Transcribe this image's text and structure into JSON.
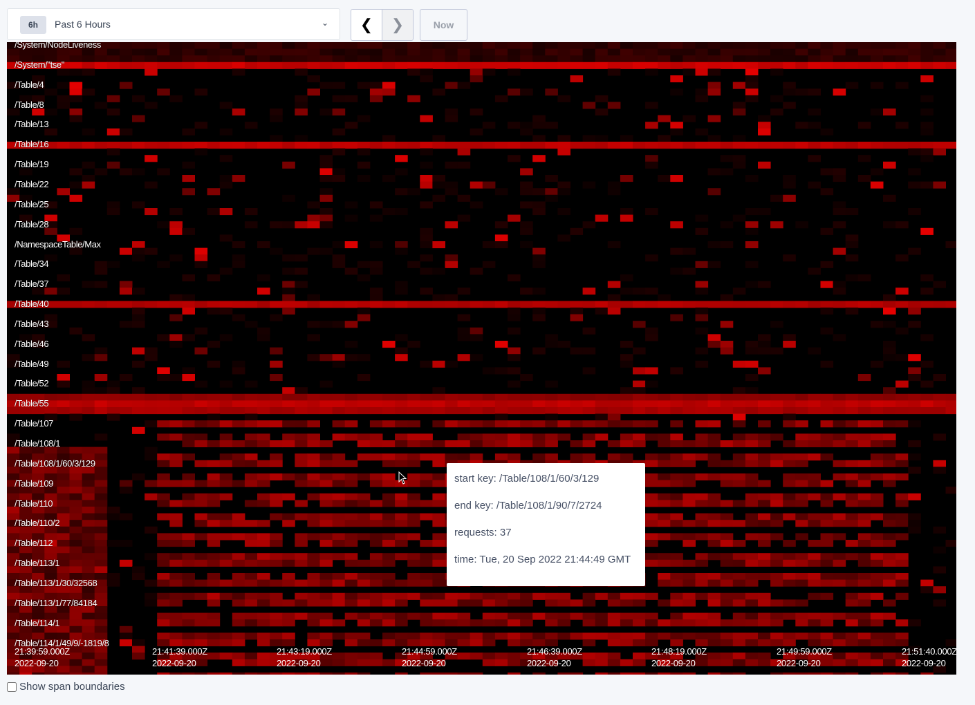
{
  "time_range": {
    "badge": "6h",
    "label": "Past 6 Hours"
  },
  "nav": {
    "prev_icon": "chevron-left-icon",
    "next_icon": "chevron-right-icon",
    "now_label": "Now"
  },
  "heatmap": {
    "colors": {
      "background": "#000000",
      "hot": "#ff0000"
    },
    "key_labels": [
      "/System/NodeLiveness",
      "/System/\"tse\"",
      "/Table/4",
      "/Table/8",
      "/Table/13",
      "/Table/16",
      "/Table/19",
      "/Table/22",
      "/Table/25",
      "/Table/28",
      "/NamespaceTable/Max",
      "/Table/34",
      "/Table/37",
      "/Table/40",
      "/Table/43",
      "/Table/46",
      "/Table/49",
      "/Table/52",
      "/Table/55",
      "/Table/107",
      "/Table/108/1",
      "/Table/108/1/60/3/129",
      "/Table/109",
      "/Table/110",
      "/Table/110/2",
      "/Table/112",
      "/Table/113/1",
      "/Table/113/1/30/32568",
      "/Table/113/1/77/84184",
      "/Table/114/1",
      "/Table/114/1/49/9/-1819/8"
    ],
    "time_labels": [
      {
        "time": "21:39:59.000Z",
        "date": "2022-09-20"
      },
      {
        "time": "21:41:39.000Z",
        "date": "2022-09-20"
      },
      {
        "time": "21:43:19.000Z",
        "date": "2022-09-20"
      },
      {
        "time": "21:44:59.000Z",
        "date": "2022-09-20"
      },
      {
        "time": "21:46:39.000Z",
        "date": "2022-09-20"
      },
      {
        "time": "21:48:19.000Z",
        "date": "2022-09-20"
      },
      {
        "time": "21:49:59.000Z",
        "date": "2022-09-20"
      },
      {
        "time": "21:51:40.000Z",
        "date": "2022-09-20"
      }
    ]
  },
  "tooltip": {
    "start_key": "start key: /Table/108/1/60/3/129",
    "end_key": "end key: /Table/108/1/90/7/2724",
    "requests": "requests: 37",
    "time": "time: Tue, 20 Sep 2022 21:44:49 GMT"
  },
  "show_span_boundaries": {
    "label": "Show span boundaries",
    "checked": false
  }
}
